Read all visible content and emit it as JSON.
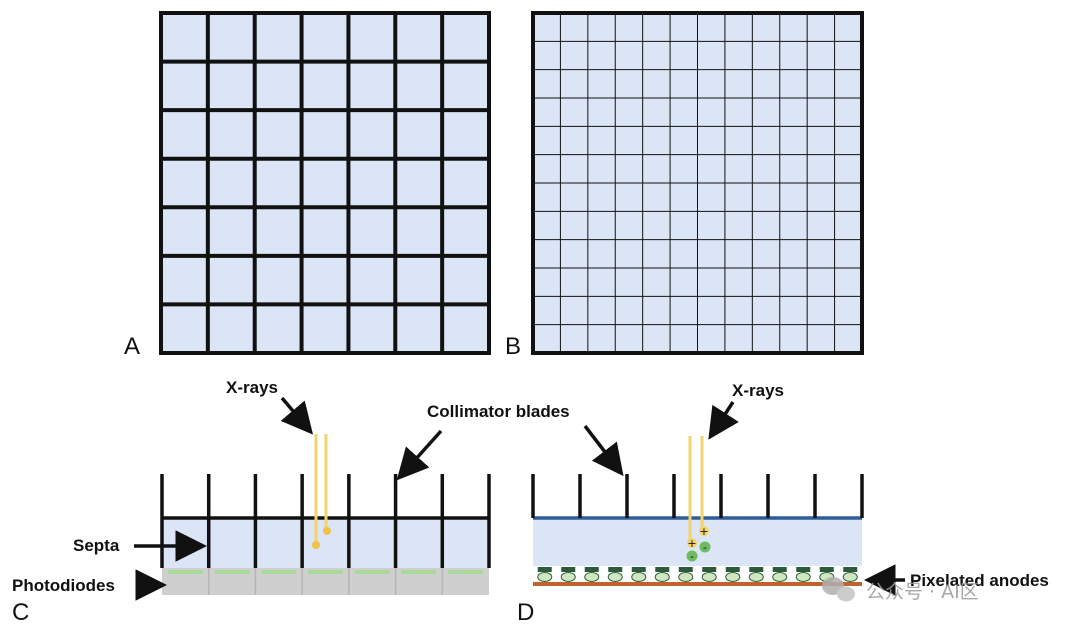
{
  "panels": {
    "a": {
      "letter": "A"
    },
    "b": {
      "letter": "B"
    },
    "c": {
      "letter": "C"
    },
    "d": {
      "letter": "D"
    }
  },
  "labels": {
    "xrays_c": "X-rays",
    "xrays_d": "X-rays",
    "collimator_blades": "Collimator blades",
    "septa": "Septa",
    "photodiodes": "Photodiodes",
    "pixelated_anodes": "Pixelated anodes"
  },
  "charges": {
    "positive": "+",
    "negative": "-"
  },
  "watermark": {
    "text": "公众号 · AI区"
  },
  "grids": {
    "a_cells": 7,
    "b_cells": 12
  },
  "colors": {
    "pixel_fill": "#dbe5f5",
    "line": "#111111",
    "xray": "#f2d46b",
    "xray_dot": "#f1c24a",
    "septa_top": "#2f5d9a",
    "photodiode_gray": "#cfcfcf",
    "photodiode_green": "#a8d89a",
    "anode_dark": "#2e5a3c",
    "anode_light": "#cfe8c0",
    "substrate": "#c0622a",
    "charge_green": "#6dbb5f"
  },
  "icons": [
    "arrow-icon",
    "wechat-logo-icon"
  ]
}
